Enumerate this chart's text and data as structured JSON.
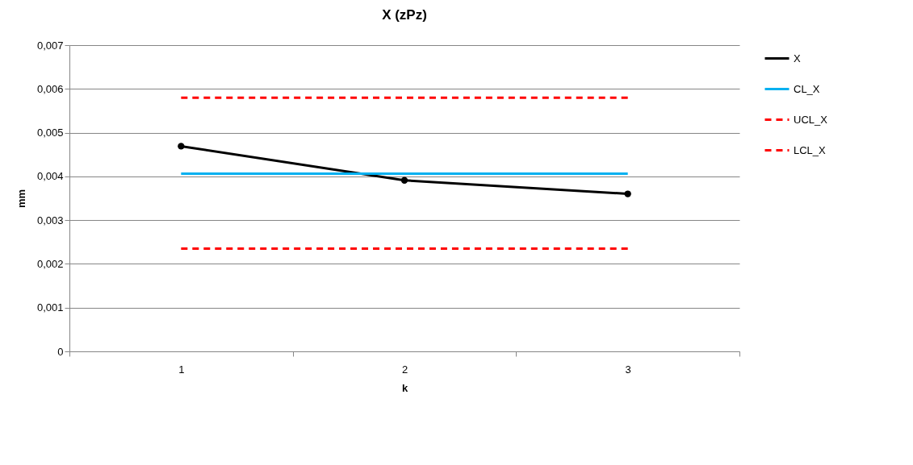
{
  "chart_data": {
    "type": "line",
    "title": "X (zPz)",
    "xlabel": "k",
    "ylabel": "mm",
    "categories": [
      "1",
      "2",
      "3"
    ],
    "series": [
      {
        "name": "X",
        "color": "#000000",
        "values": [
          0.00469,
          0.00391,
          0.0036
        ],
        "marker": "circle",
        "line_style": "solid"
      },
      {
        "name": "CL_X",
        "color": "#00b0f0",
        "values": [
          0.00406,
          0.00406,
          0.00406
        ],
        "marker": "none",
        "line_style": "solid"
      },
      {
        "name": "UCL_X",
        "color": "#ff0000",
        "values": [
          0.0058,
          0.0058,
          0.0058
        ],
        "marker": "none",
        "line_style": "dashed"
      },
      {
        "name": "LCL_X",
        "color": "#ff0000",
        "values": [
          0.00235,
          0.00235,
          0.00235
        ],
        "marker": "none",
        "line_style": "dashed"
      }
    ],
    "ylim": [
      0,
      0.007
    ],
    "yticks": [
      0,
      {
        "value": 0.001,
        "label": "0,001"
      },
      {
        "value": 0.002,
        "label": "0,002"
      },
      {
        "value": 0.003,
        "label": "0,003"
      },
      {
        "value": 0.004,
        "label": "0,004"
      },
      {
        "value": 0.005,
        "label": "0,005"
      },
      {
        "value": 0.006,
        "label": "0,006"
      },
      {
        "value": 0.007,
        "label": "0,007"
      }
    ],
    "grid": "y",
    "legend": "right"
  }
}
